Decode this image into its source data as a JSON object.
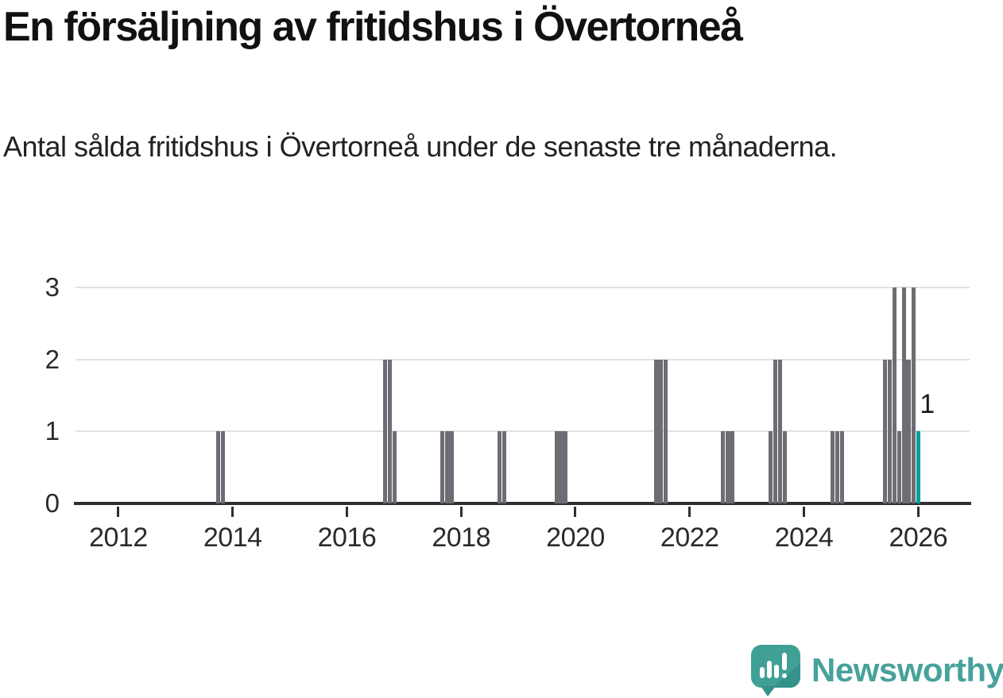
{
  "header": {
    "title": "En försäljning av fritidshus i Övertorneå",
    "subtitle": "Antal sålda fritidshus i Övertorneå under de senaste tre månaderna."
  },
  "chart_data": {
    "type": "bar",
    "title": "En försäljning av fritidshus i Övertorneå",
    "subtitle": "Antal sålda fritidshus i Övertorneå under de senaste tre månaderna.",
    "xlabel": "",
    "ylabel": "",
    "x_axis": {
      "min": 2011.25,
      "max": 2026.9,
      "ticks": [
        2012,
        2014,
        2016,
        2018,
        2020,
        2022,
        2024,
        2026
      ]
    },
    "y_axis": {
      "min": 0,
      "max": 3,
      "ticks": [
        0,
        1,
        2,
        3
      ]
    },
    "grid": "horizontal",
    "legend": "none",
    "bars": [
      {
        "x": 2013.75,
        "value": 1
      },
      {
        "x": 2013.83,
        "value": 1
      },
      {
        "x": 2016.67,
        "value": 2
      },
      {
        "x": 2016.75,
        "value": 2
      },
      {
        "x": 2016.83,
        "value": 1
      },
      {
        "x": 2017.67,
        "value": 1
      },
      {
        "x": 2017.75,
        "value": 1
      },
      {
        "x": 2017.83,
        "value": 1
      },
      {
        "x": 2018.67,
        "value": 1
      },
      {
        "x": 2018.75,
        "value": 1
      },
      {
        "x": 2019.67,
        "value": 1
      },
      {
        "x": 2019.75,
        "value": 1
      },
      {
        "x": 2019.83,
        "value": 1
      },
      {
        "x": 2021.42,
        "value": 2
      },
      {
        "x": 2021.5,
        "value": 2
      },
      {
        "x": 2021.58,
        "value": 2
      },
      {
        "x": 2022.58,
        "value": 1
      },
      {
        "x": 2022.67,
        "value": 1
      },
      {
        "x": 2022.75,
        "value": 1
      },
      {
        "x": 2023.42,
        "value": 1
      },
      {
        "x": 2023.5,
        "value": 2
      },
      {
        "x": 2023.58,
        "value": 2
      },
      {
        "x": 2023.67,
        "value": 1
      },
      {
        "x": 2024.5,
        "value": 1
      },
      {
        "x": 2024.58,
        "value": 1
      },
      {
        "x": 2024.67,
        "value": 1
      },
      {
        "x": 2025.42,
        "value": 2
      },
      {
        "x": 2025.5,
        "value": 2
      },
      {
        "x": 2025.58,
        "value": 3
      },
      {
        "x": 2025.67,
        "value": 1
      },
      {
        "x": 2025.75,
        "value": 3
      },
      {
        "x": 2025.83,
        "value": 2
      },
      {
        "x": 2025.92,
        "value": 3
      },
      {
        "x": 2026.0,
        "value": 1,
        "highlight": true,
        "label": "1"
      }
    ],
    "last_point_label": "1",
    "colors": {
      "bar": "#6e6d74",
      "highlight": "#00a099",
      "grid": "#e2e2e2",
      "axis": "#2f2f2f",
      "text": "#2b2b2b"
    }
  },
  "footer": {
    "brand": "Newsworthy",
    "logo_icon": "newsworthy-speech-bubble-chart-icon",
    "brand_color": "#47a29b",
    "logo_fill": "#40a096"
  }
}
